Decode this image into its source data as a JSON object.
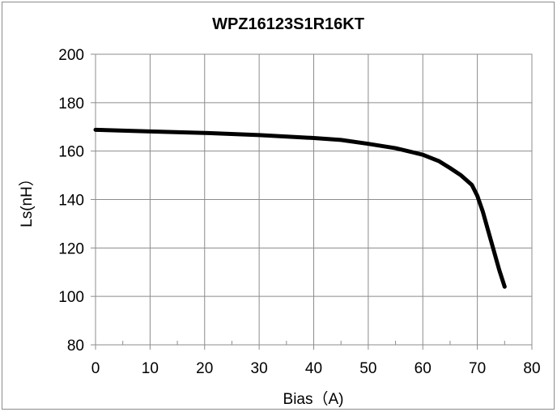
{
  "chart_data": {
    "type": "line",
    "title": "WPZ16123S1R16KT",
    "xlabel": "Bias（A)",
    "ylabel": "Ls(nH）",
    "xlim": [
      0,
      80
    ],
    "ylim": [
      80,
      200
    ],
    "x_ticks": [
      "0",
      "10",
      "20",
      "30",
      "40",
      "50",
      "60",
      "70",
      "80"
    ],
    "y_ticks": [
      "80",
      "100",
      "120",
      "140",
      "160",
      "180",
      "200"
    ],
    "grid": true,
    "legend": "none",
    "series": [
      {
        "color": "#000000",
        "x": [
          0,
          10,
          20,
          30,
          40,
          45,
          50,
          55,
          60,
          63,
          65,
          67,
          69,
          70,
          71,
          72,
          73,
          74,
          75
        ],
        "y": [
          168.8,
          168.1,
          167.5,
          166.6,
          165.4,
          164.6,
          163.0,
          161.2,
          158.5,
          155.8,
          153.0,
          150.0,
          146.0,
          141.5,
          135.0,
          127.0,
          119.0,
          111.0,
          104.0
        ]
      }
    ]
  }
}
